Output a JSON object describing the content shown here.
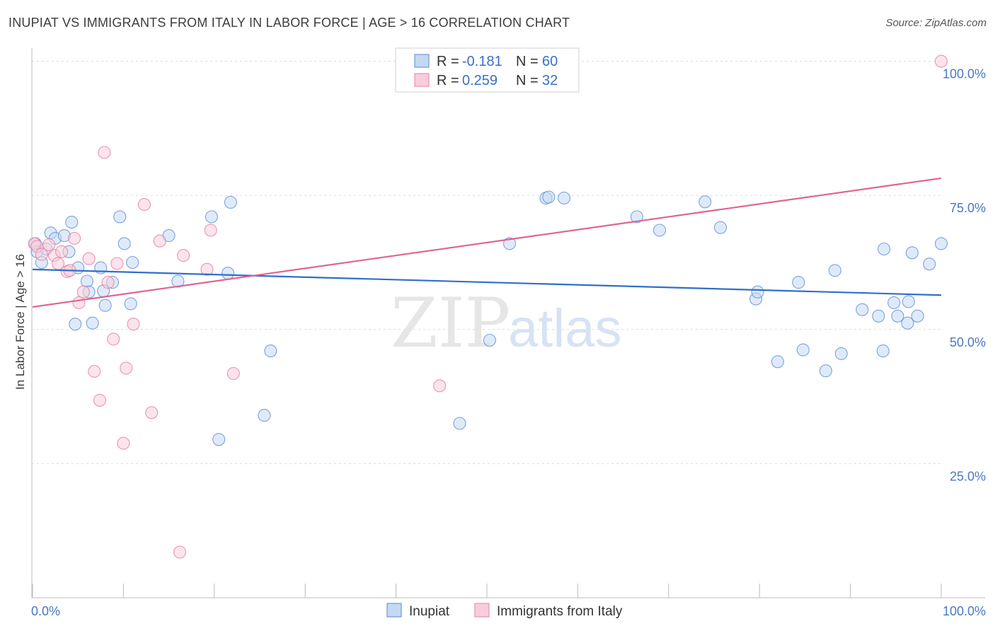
{
  "title": "INUPIAT VS IMMIGRANTS FROM ITALY IN LABOR FORCE | AGE > 16 CORRELATION CHART",
  "source": "Source: ZipAtlas.com",
  "watermark": {
    "zip": "ZIP",
    "atlas": "atlas"
  },
  "chart_data": {
    "type": "scatter",
    "title": "INUPIAT VS IMMIGRANTS FROM ITALY IN LABOR FORCE | AGE > 16 CORRELATION CHART",
    "xlabel": "",
    "ylabel": "In Labor Force | Age > 16",
    "xlim": [
      0,
      100
    ],
    "ylim": [
      0,
      101
    ],
    "x_tick_labels": [
      "0.0%",
      "100.0%"
    ],
    "y_ticks": [
      {
        "value": 25,
        "label": "25.0%"
      },
      {
        "value": 50,
        "label": "50.0%"
      },
      {
        "value": 75,
        "label": "75.0%"
      },
      {
        "value": 100,
        "label": "100.0%"
      }
    ],
    "grid": true,
    "legend_position": "top-center",
    "series": [
      {
        "name": "Inupiat",
        "color": "#5b8fd6",
        "fill": "#c4d8f4",
        "r_label": "R =",
        "r": "-0.181",
        "n_label": "N =",
        "n": "60",
        "trend": {
          "x": [
            0,
            100
          ],
          "y": [
            61.2,
            56.4
          ]
        },
        "points": [
          [
            0.3,
            66
          ],
          [
            0.5,
            64.5
          ],
          [
            1,
            62.5
          ],
          [
            1.5,
            65
          ],
          [
            2,
            68
          ],
          [
            2.5,
            67
          ],
          [
            3.5,
            67.5
          ],
          [
            4,
            64.5
          ],
          [
            4.3,
            70
          ],
          [
            4.7,
            51
          ],
          [
            5,
            61.5
          ],
          [
            6,
            59
          ],
          [
            6.2,
            57
          ],
          [
            6.6,
            51.2
          ],
          [
            7.5,
            61.5
          ],
          [
            7.8,
            57.2
          ],
          [
            8,
            54.5
          ],
          [
            8.8,
            58.8
          ],
          [
            9.6,
            71
          ],
          [
            10.1,
            66
          ],
          [
            10.8,
            54.8
          ],
          [
            11,
            62.5
          ],
          [
            15,
            67.5
          ],
          [
            16,
            59
          ],
          [
            19.7,
            71
          ],
          [
            20.5,
            29.5
          ],
          [
            21.5,
            60.5
          ],
          [
            21.8,
            73.7
          ],
          [
            25.5,
            34
          ],
          [
            26.2,
            46
          ],
          [
            47,
            32.5
          ],
          [
            50.3,
            48
          ],
          [
            52.5,
            66
          ],
          [
            56.5,
            74.5
          ],
          [
            56.8,
            74.7
          ],
          [
            58.5,
            74.5
          ],
          [
            66.5,
            71
          ],
          [
            69,
            68.5
          ],
          [
            74,
            73.8
          ],
          [
            75.7,
            69
          ],
          [
            79.6,
            55.7
          ],
          [
            79.8,
            57
          ],
          [
            82,
            44
          ],
          [
            84.3,
            58.8
          ],
          [
            84.8,
            46.2
          ],
          [
            87.3,
            42.3
          ],
          [
            88.3,
            61
          ],
          [
            89,
            45.5
          ],
          [
            91.3,
            53.7
          ],
          [
            93.1,
            52.5
          ],
          [
            93.6,
            46
          ],
          [
            93.7,
            65
          ],
          [
            94.8,
            55
          ],
          [
            95.2,
            52.5
          ],
          [
            96.3,
            51.2
          ],
          [
            96.4,
            55.2
          ],
          [
            96.8,
            64.3
          ],
          [
            97.4,
            52.5
          ],
          [
            98.7,
            62.2
          ],
          [
            100,
            66
          ]
        ]
      },
      {
        "name": "Immigrants from Italy",
        "color": "#e87aa0",
        "fill": "#f8cddb",
        "r_label": "R =",
        "r": "0.259",
        "n_label": "N =",
        "n": "32",
        "trend": {
          "x": [
            0,
            100
          ],
          "y": [
            54.2,
            78.2
          ]
        },
        "points": [
          [
            0.2,
            66
          ],
          [
            0.5,
            65.5
          ],
          [
            1,
            64
          ],
          [
            1.8,
            65.8
          ],
          [
            2.4,
            63.8
          ],
          [
            2.8,
            62.3
          ],
          [
            3.2,
            64.5
          ],
          [
            3.8,
            60.8
          ],
          [
            4.1,
            61
          ],
          [
            4.6,
            67
          ],
          [
            5.1,
            55
          ],
          [
            5.6,
            57
          ],
          [
            6.2,
            63.2
          ],
          [
            6.8,
            42.2
          ],
          [
            7.4,
            36.8
          ],
          [
            7.9,
            83
          ],
          [
            8.3,
            58.8
          ],
          [
            8.9,
            48.2
          ],
          [
            9.3,
            62.3
          ],
          [
            10,
            28.8
          ],
          [
            10.3,
            42.8
          ],
          [
            11.1,
            51
          ],
          [
            12.3,
            73.3
          ],
          [
            13.1,
            34.5
          ],
          [
            14.0,
            66.5
          ],
          [
            16.2,
            8.5
          ],
          [
            16.6,
            63.8
          ],
          [
            19.2,
            61.2
          ],
          [
            19.6,
            68.5
          ],
          [
            22.1,
            41.8
          ],
          [
            44.8,
            39.5
          ],
          [
            100,
            100
          ]
        ]
      }
    ]
  }
}
